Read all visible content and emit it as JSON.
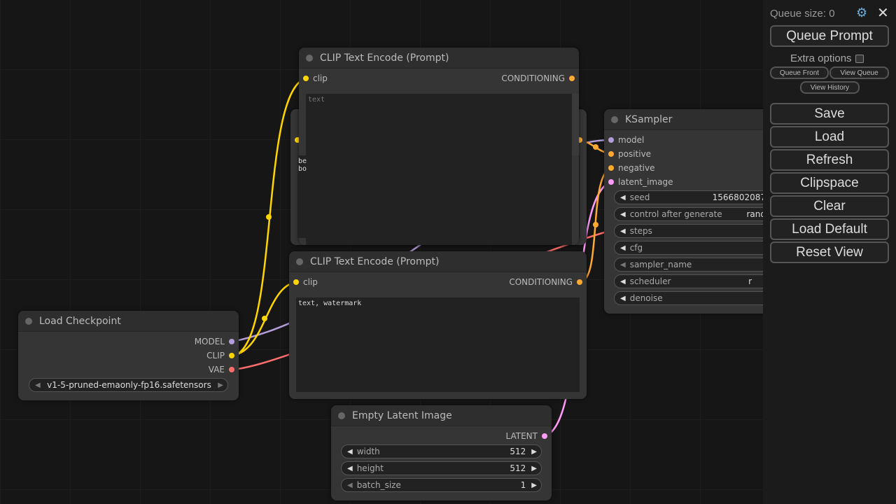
{
  "colors": {
    "clip": "#ffd500",
    "model": "#b39ddb",
    "vae": "#ff6e6e",
    "conditioning": "#ffa931",
    "latent": "#ff9cf9"
  },
  "clip_top": {
    "title": "CLIP Text Encode (Prompt)",
    "input": "clip",
    "output": "CONDITIONING",
    "placeholder": "text",
    "text": ""
  },
  "clip_hidden": {
    "text": "be\nbo"
  },
  "clip_bottom": {
    "title": "CLIP Text Encode (Prompt)",
    "input": "clip",
    "output": "CONDITIONING",
    "text": "text, watermark"
  },
  "checkpoint": {
    "title": "Load Checkpoint",
    "outputs": [
      "MODEL",
      "CLIP",
      "VAE"
    ],
    "ckpt_name": "v1-5-pruned-emaonly-fp16.safetensors"
  },
  "latent": {
    "title": "Empty Latent Image",
    "output": "LATENT",
    "widgets": [
      {
        "label": "width",
        "value": "512"
      },
      {
        "label": "height",
        "value": "512"
      },
      {
        "label": "batch_size",
        "value": "1"
      }
    ]
  },
  "ksampler": {
    "title": "KSampler",
    "inputs": [
      "model",
      "positive",
      "negative",
      "latent_image"
    ],
    "widgets": [
      {
        "label": "seed",
        "value": "1566802087"
      },
      {
        "label": "control after generate",
        "value": "rand"
      },
      {
        "label": "steps",
        "value": ""
      },
      {
        "label": "cfg",
        "value": ""
      },
      {
        "label": "sampler_name",
        "value": ""
      },
      {
        "label": "scheduler",
        "value": "r"
      },
      {
        "label": "denoise",
        "value": ""
      }
    ]
  },
  "panel": {
    "queue_size": "Queue size: 0",
    "queue_prompt": "Queue Prompt",
    "extra_options": "Extra options",
    "queue_front": "Queue Front",
    "view_queue": "View Queue",
    "view_history": "View History",
    "buttons": [
      "Save",
      "Load",
      "Refresh",
      "Clipspace",
      "Clear",
      "Load Default",
      "Reset View"
    ]
  }
}
